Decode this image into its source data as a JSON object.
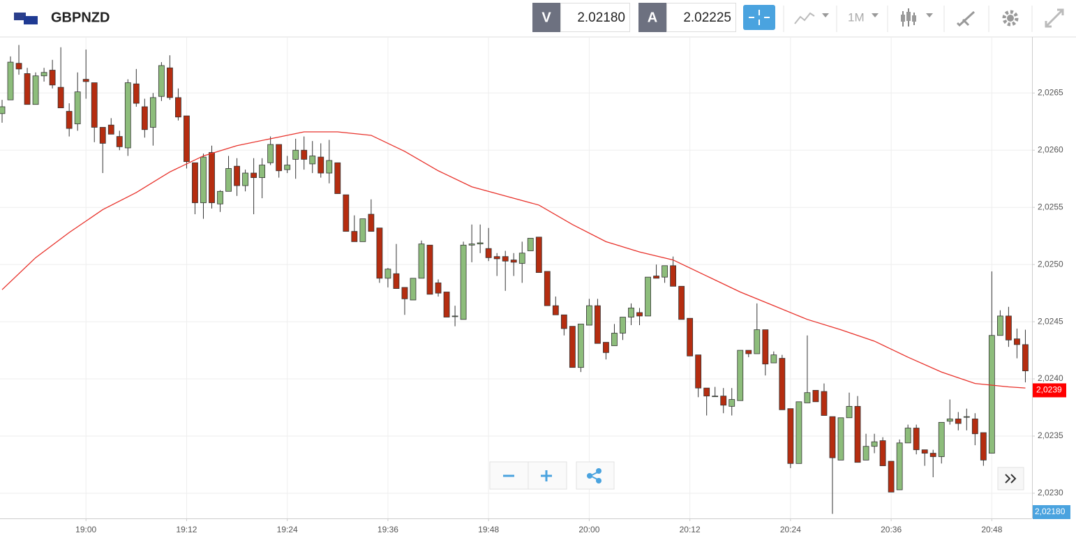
{
  "header": {
    "symbol": "GBPNZD",
    "bid_label": "V",
    "bid": "2.02180",
    "ask_label": "A",
    "ask": "2.02225",
    "timeframe": "1M"
  },
  "chart_data": {
    "type": "candlestick",
    "categories": [
      null,
      null,
      null,
      null,
      null,
      null,
      null,
      null,
      null,
      null,
      "19:00",
      null,
      null,
      null,
      null,
      null,
      null,
      null,
      null,
      null,
      null,
      null,
      "19:12",
      null,
      null,
      null,
      null,
      null,
      null,
      null,
      null,
      null,
      null,
      null,
      "19:24",
      null,
      null,
      null,
      null,
      null,
      null,
      null,
      null,
      null,
      null,
      null,
      "19:36",
      null,
      null,
      null,
      null,
      null,
      null,
      null,
      null,
      null,
      null,
      null,
      "19:48",
      null,
      null,
      null,
      null,
      null,
      null,
      null,
      null,
      null,
      null,
      null,
      "20:00",
      null,
      null,
      null,
      null,
      null,
      null,
      null,
      null,
      null,
      null,
      null,
      "20:12",
      null,
      null,
      null,
      null,
      null,
      null,
      null,
      null,
      null,
      null,
      null,
      "20:24",
      null,
      null,
      null,
      null,
      null,
      null,
      null,
      null,
      null,
      null,
      null,
      "20:36",
      null,
      null,
      null,
      null,
      null,
      null,
      null,
      null,
      null,
      null,
      null,
      "20:48",
      null,
      null,
      null,
      null
    ],
    "open": [
      2.02632,
      2.02644,
      2.02676,
      2.02667,
      2.0264,
      2.02665,
      2.0267,
      2.02655,
      2.02634,
      2.02623,
      2.02662,
      2.02659,
      2.0262,
      2.02622,
      2.02612,
      2.02602,
      2.02658,
      2.02638,
      2.0262,
      2.02647,
      2.02672,
      2.02646,
      2.0263,
      2.02589,
      2.02554,
      2.02598,
      2.02553,
      2.02564,
      2.02586,
      2.02569,
      2.0258,
      2.02576,
      2.02589,
      2.02605,
      2.02583,
      2.02592,
      2.026,
      2.02588,
      2.02594,
      2.0258,
      2.02589,
      2.02561,
      2.02529,
      2.0252,
      2.02544,
      2.02532,
      2.02488,
      2.02492,
      2.0248,
      2.02469,
      2.02488,
      2.02517,
      2.02484,
      2.02476,
      2.02455,
      2.02452,
      2.02517,
      2.02518,
      2.02514,
      2.02507,
      2.02507,
      2.02504,
      2.02501,
      2.02512,
      2.02524,
      2.02494,
      2.02464,
      2.02456,
      2.02446,
      2.0241,
      2.02447,
      2.02464,
      2.02432,
      2.02429,
      2.0244,
      2.02454,
      2.02458,
      2.02455,
      2.0249,
      2.02489,
      2.02499,
      2.02481,
      2.02453,
      2.02421,
      2.02392,
      2.02385,
      2.02385,
      2.02376,
      2.02381,
      2.02425,
      2.02422,
      2.02443,
      2.02414,
      2.02418,
      2.02374,
      2.02326,
      2.02379,
      2.0239,
      2.02389,
      2.02367,
      2.02329,
      2.02366,
      2.02376,
      2.02329,
      2.02341,
      2.02346,
      2.02328,
      2.02303,
      2.02344,
      2.02357,
      2.02338,
      2.02335,
      2.02332,
      2.02363,
      2.02365,
      2.02367,
      2.02365,
      2.02353,
      2.02335,
      2.02438,
      2.02455,
      2.02435,
      2.0243
    ],
    "high": [
      2.02644,
      2.02682,
      2.02692,
      2.02672,
      2.02668,
      2.02672,
      2.02679,
      2.0269,
      2.02641,
      2.02668,
      2.02688,
      2.02659,
      2.0262,
      2.02628,
      2.02617,
      2.02662,
      2.02671,
      2.02645,
      2.0265,
      2.02677,
      2.02683,
      2.02654,
      2.0263,
      2.02589,
      2.02597,
      2.02604,
      2.02565,
      2.02595,
      2.02593,
      2.02583,
      2.02593,
      2.02593,
      2.02612,
      2.02605,
      2.02595,
      2.0261,
      2.02612,
      2.02608,
      2.02606,
      2.02609,
      2.02589,
      2.02561,
      2.02543,
      2.0254,
      2.02557,
      2.02532,
      2.02497,
      2.02518,
      2.0248,
      2.02488,
      2.02521,
      2.02517,
      2.02487,
      2.02476,
      2.02464,
      2.0252,
      2.02535,
      2.02535,
      2.02532,
      2.0251,
      2.02512,
      2.0251,
      2.0252,
      2.02523,
      2.02524,
      2.02494,
      2.02472,
      2.02456,
      2.02446,
      2.02448,
      2.0247,
      2.0247,
      2.02432,
      2.02448,
      2.02454,
      2.02466,
      2.02462,
      2.02489,
      2.025,
      2.02499,
      2.02507,
      2.02481,
      2.02453,
      2.02421,
      2.02392,
      2.02393,
      2.02392,
      2.02392,
      2.02425,
      2.02425,
      2.02466,
      2.02443,
      2.02424,
      2.02421,
      2.02374,
      2.0238,
      2.02438,
      2.0239,
      2.02396,
      2.02367,
      2.02366,
      2.02388,
      2.02385,
      2.02352,
      2.02352,
      2.02349,
      2.02328,
      2.02347,
      2.0236,
      2.0236,
      2.02338,
      2.02338,
      2.02362,
      2.02382,
      2.02371,
      2.02374,
      2.0237,
      2.02353,
      2.02494,
      2.0246,
      2.02463,
      2.02444,
      2.02443
    ],
    "low": [
      2.02624,
      2.02644,
      2.02666,
      2.0264,
      2.0264,
      2.0266,
      2.02654,
      2.02637,
      2.02612,
      2.02617,
      2.02645,
      2.02607,
      2.0258,
      2.02614,
      2.026,
      2.02595,
      2.02638,
      2.02611,
      2.02604,
      2.02643,
      2.02644,
      2.02626,
      2.02584,
      2.02544,
      2.0254,
      2.02549,
      2.02546,
      2.02564,
      2.0256,
      2.02564,
      2.02544,
      2.02558,
      2.02587,
      2.02576,
      2.0258,
      2.02575,
      2.02583,
      2.0258,
      2.02576,
      2.02571,
      2.02562,
      2.02529,
      2.0252,
      2.0252,
      2.02529,
      2.02484,
      2.0248,
      2.02479,
      2.02456,
      2.02469,
      2.02488,
      2.02474,
      2.02472,
      2.02454,
      2.02446,
      2.02452,
      2.02502,
      2.0251,
      2.02503,
      2.0249,
      2.02477,
      2.0249,
      2.02484,
      2.02512,
      2.02493,
      2.02464,
      2.02456,
      2.02438,
      2.0241,
      2.02406,
      2.02447,
      2.02431,
      2.02417,
      2.02429,
      2.02434,
      2.02447,
      2.02447,
      2.02455,
      2.02488,
      2.02484,
      2.02481,
      2.02452,
      2.0242,
      2.02384,
      2.02368,
      2.02385,
      2.0237,
      2.02368,
      2.02381,
      2.02419,
      2.02422,
      2.02403,
      2.02414,
      2.02373,
      2.02322,
      2.02326,
      2.02379,
      2.0238,
      2.02368,
      2.02282,
      2.02329,
      2.02366,
      2.02327,
      2.02329,
      2.02335,
      2.02324,
      2.02301,
      2.02303,
      2.02344,
      2.02334,
      2.02324,
      2.02314,
      2.02326,
      2.0236,
      2.02355,
      2.02355,
      2.02342,
      2.02324,
      2.02335,
      2.02438,
      2.02428,
      2.02418,
      2.02397
    ],
    "close": [
      2.02638,
      2.02677,
      2.02671,
      2.0264,
      2.02665,
      2.02668,
      2.02657,
      2.02637,
      2.02619,
      2.02651,
      2.0266,
      2.0262,
      2.02606,
      2.02614,
      2.02603,
      2.02659,
      2.02641,
      2.02618,
      2.02646,
      2.02674,
      2.02646,
      2.02629,
      2.0259,
      2.02554,
      2.02594,
      2.02554,
      2.02564,
      2.02584,
      2.02569,
      2.0258,
      2.02576,
      2.02587,
      2.02605,
      2.02582,
      2.02587,
      2.026,
      2.02592,
      2.02595,
      2.0258,
      2.02591,
      2.02562,
      2.02529,
      2.0252,
      2.0254,
      2.02529,
      2.02488,
      2.02496,
      2.02479,
      2.0247,
      2.02488,
      2.02518,
      2.02474,
      2.02475,
      2.02454,
      2.02455,
      2.02517,
      2.02518,
      2.02519,
      2.02506,
      2.02505,
      2.02503,
      2.02502,
      2.0251,
      2.02523,
      2.02493,
      2.02464,
      2.02456,
      2.02444,
      2.0241,
      2.02448,
      2.02464,
      2.02431,
      2.02423,
      2.0244,
      2.02454,
      2.02462,
      2.02455,
      2.02489,
      2.02488,
      2.02499,
      2.02481,
      2.02452,
      2.0242,
      2.02392,
      2.02385,
      2.02385,
      2.02377,
      2.02382,
      2.02425,
      2.02422,
      2.02443,
      2.02413,
      2.02421,
      2.02373,
      2.02326,
      2.0238,
      2.02388,
      2.0238,
      2.02368,
      2.02331,
      2.02366,
      2.02376,
      2.02327,
      2.02341,
      2.02345,
      2.02324,
      2.02301,
      2.02344,
      2.02357,
      2.02338,
      2.02335,
      2.02332,
      2.02362,
      2.02365,
      2.02361,
      2.02367,
      2.02352,
      2.02329,
      2.02438,
      2.02455,
      2.02434,
      2.0243,
      2.02407
    ],
    "up_color": "#8dbd7b",
    "down_color": "#b52d10",
    "moving_average": {
      "color": "#e8312a",
      "x": [
        0,
        4,
        8,
        12,
        16,
        20,
        24,
        28,
        32,
        36,
        40,
        44,
        48,
        52,
        56,
        60,
        64,
        68,
        72,
        76,
        80,
        84,
        88,
        92,
        96,
        100,
        104,
        108,
        112,
        116,
        120,
        122
      ],
      "values": [
        2.02478,
        2.02506,
        2.02528,
        2.02548,
        2.02563,
        2.02581,
        2.02595,
        2.02604,
        2.0261,
        2.02616,
        2.02616,
        2.02613,
        2.02599,
        2.02582,
        2.02568,
        2.0256,
        2.02552,
        2.02535,
        2.0252,
        2.02511,
        2.02504,
        2.0249,
        2.02476,
        2.02464,
        2.02452,
        2.02443,
        2.02433,
        2.02419,
        2.02406,
        2.02396,
        2.02393,
        2.02392
      ],
      "last": {
        "value": 2.0239,
        "label": "2,0239"
      }
    },
    "price_tag": {
      "value": 2.0218,
      "label": "2,02180",
      "color": "#4aa3df"
    },
    "ylim": [
      2.02278,
      2.02699
    ],
    "yticks": [
      {
        "value": 2.023,
        "label": "2,0230"
      },
      {
        "value": 2.0235,
        "label": "2,0235"
      },
      {
        "value": 2.024,
        "label": "2,0240"
      },
      {
        "value": 2.0245,
        "label": "2,0245"
      },
      {
        "value": 2.025,
        "label": "2,0250"
      },
      {
        "value": 2.0255,
        "label": "2,0255"
      },
      {
        "value": 2.026,
        "label": "2,0260"
      },
      {
        "value": 2.0265,
        "label": "2,0265"
      }
    ],
    "grid": true
  }
}
